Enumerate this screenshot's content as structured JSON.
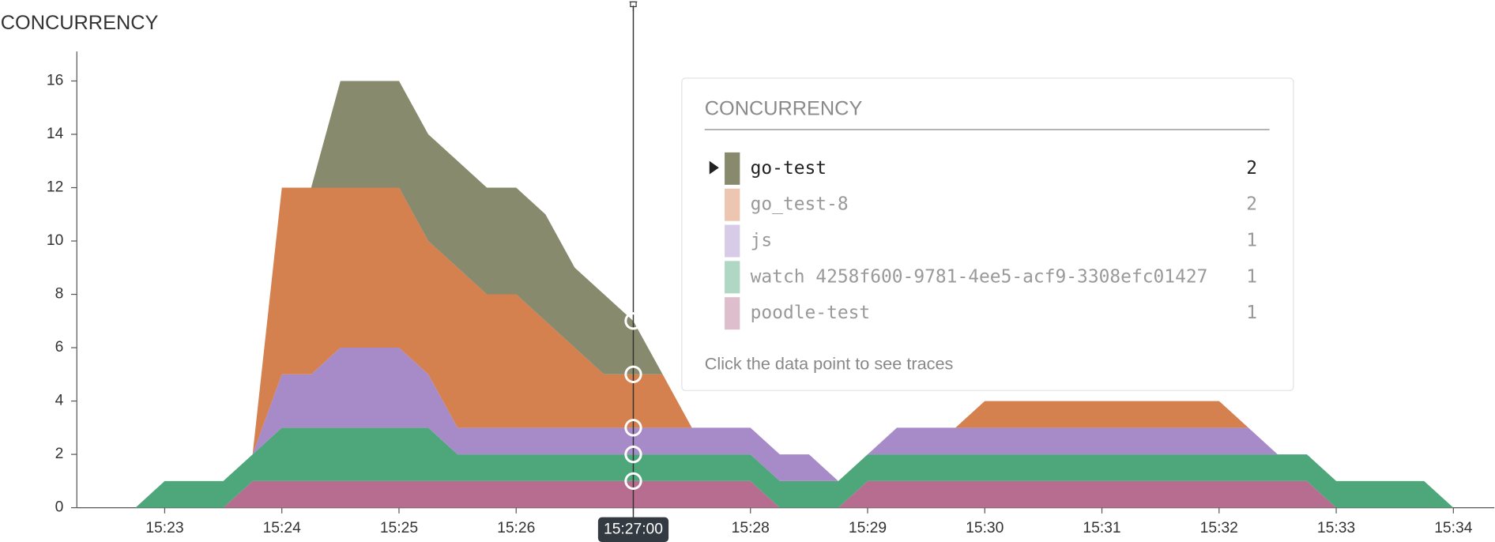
{
  "chart_data": {
    "type": "area",
    "title": "CONCURRENCY",
    "x": [
      "15:22:30",
      "15:22:45",
      "15:23:00",
      "15:23:15",
      "15:23:30",
      "15:23:45",
      "15:24:00",
      "15:24:15",
      "15:24:30",
      "15:24:45",
      "15:25:00",
      "15:25:15",
      "15:25:30",
      "15:25:45",
      "15:26:00",
      "15:26:15",
      "15:26:30",
      "15:26:45",
      "15:27:00",
      "15:27:15",
      "15:27:30",
      "15:27:45",
      "15:28:00",
      "15:28:15",
      "15:28:30",
      "15:28:45",
      "15:29:00",
      "15:29:15",
      "15:29:30",
      "15:29:45",
      "15:30:00",
      "15:30:15",
      "15:30:30",
      "15:30:45",
      "15:31:00",
      "15:31:15",
      "15:31:30",
      "15:31:45",
      "15:32:00",
      "15:32:15",
      "15:32:30",
      "15:32:45",
      "15:33:00",
      "15:33:15",
      "15:33:30",
      "15:33:45",
      "15:34:00"
    ],
    "series": [
      {
        "name": "go-test",
        "color": "#878a6d",
        "values": [
          0,
          0,
          0,
          0,
          0,
          0,
          0,
          0,
          4,
          4,
          4,
          4,
          4,
          4,
          4,
          4,
          3,
          3,
          2,
          0,
          0,
          0,
          0,
          0,
          0,
          0,
          0,
          0,
          0,
          0,
          0,
          0,
          0,
          0,
          0,
          0,
          0,
          0,
          0,
          0,
          0,
          0,
          0,
          0,
          0,
          0,
          0
        ]
      },
      {
        "name": "go_test-8",
        "color": "#d4804f",
        "values": [
          0,
          0,
          0,
          0,
          0,
          0,
          7,
          7,
          6,
          6,
          6,
          5,
          6,
          5,
          5,
          4,
          3,
          2,
          2,
          2,
          0,
          0,
          0,
          0,
          0,
          0,
          0,
          0,
          0,
          0,
          1,
          1,
          1,
          1,
          1,
          1,
          1,
          1,
          1,
          0,
          0,
          0,
          0,
          0,
          0,
          0,
          0
        ]
      },
      {
        "name": "js",
        "color": "#a78bc9",
        "values": [
          0,
          0,
          0,
          0,
          0,
          0,
          2,
          2,
          3,
          3,
          3,
          2,
          1,
          1,
          1,
          1,
          1,
          1,
          1,
          1,
          1,
          1,
          1,
          1,
          1,
          0,
          0,
          1,
          1,
          1,
          1,
          1,
          1,
          1,
          1,
          1,
          1,
          1,
          1,
          1,
          0,
          0,
          0,
          0,
          0,
          0,
          0
        ]
      },
      {
        "name": "watch 4258f600-9781-4ee5-acf9-3308efc01427",
        "color": "#4ea67b",
        "values": [
          0,
          0,
          1,
          1,
          1,
          1,
          2,
          2,
          2,
          2,
          2,
          2,
          1,
          1,
          1,
          1,
          1,
          1,
          1,
          1,
          1,
          1,
          1,
          1,
          1,
          1,
          1,
          1,
          1,
          1,
          1,
          1,
          1,
          1,
          1,
          1,
          1,
          1,
          1,
          1,
          1,
          1,
          1,
          1,
          1,
          1,
          0
        ]
      },
      {
        "name": "poodle-test",
        "color": "#b66d8f",
        "values": [
          0,
          0,
          0,
          0,
          0,
          1,
          1,
          1,
          1,
          1,
          1,
          1,
          1,
          1,
          1,
          1,
          1,
          1,
          1,
          1,
          1,
          1,
          1,
          0,
          0,
          0,
          1,
          1,
          1,
          1,
          1,
          1,
          1,
          1,
          1,
          1,
          1,
          1,
          1,
          1,
          1,
          1,
          0,
          0,
          0,
          0,
          0
        ]
      }
    ],
    "xlim": [
      "15:22:15",
      "15:34:21"
    ],
    "xticks": [
      "15:23",
      "15:24",
      "15:25",
      "15:26",
      "15:27",
      "15:28",
      "15:29",
      "15:30",
      "15:31",
      "15:32",
      "15:33",
      "15:34"
    ],
    "ylim": [
      0,
      17
    ],
    "yticks": [
      0,
      2,
      4,
      6,
      8,
      10,
      12,
      14,
      16
    ],
    "cursor_index": 18,
    "tooltip": {
      "title": "CONCURRENCY",
      "hint": "Click the data point to see traces"
    }
  }
}
